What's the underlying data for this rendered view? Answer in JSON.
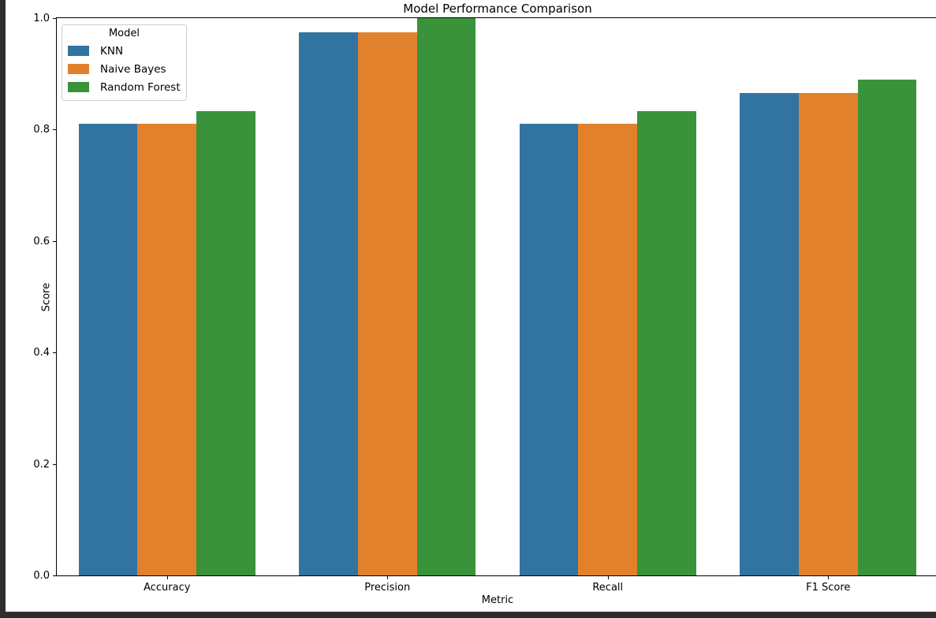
{
  "window": {
    "background_color": "#2e2e2e",
    "figure_background": "#ffffff"
  },
  "chart_data": {
    "type": "bar",
    "title": "Model Performance Comparison",
    "xlabel": "Metric",
    "ylabel": "Score",
    "categories": [
      "Accuracy",
      "Precision",
      "Recall",
      "F1 Score"
    ],
    "series": [
      {
        "name": "KNN",
        "color": "#3274a1",
        "values": [
          0.81,
          0.975,
          0.81,
          0.865
        ]
      },
      {
        "name": "Naive Bayes",
        "color": "#e1812c",
        "values": [
          0.81,
          0.975,
          0.81,
          0.865
        ]
      },
      {
        "name": "Random Forest",
        "color": "#3a923a",
        "values": [
          0.833,
          1.0,
          0.833,
          0.89
        ]
      }
    ],
    "ylim": [
      0.0,
      1.0
    ],
    "yticks": [
      0.0,
      0.2,
      0.4,
      0.6,
      0.8,
      1.0
    ],
    "ytick_labels": [
      "0.0",
      "0.2",
      "0.4",
      "0.6",
      "0.8",
      "1.0"
    ],
    "legend": {
      "title": "Model",
      "position": "upper left"
    },
    "grid": false,
    "bar_group_width_fraction": 0.8
  }
}
